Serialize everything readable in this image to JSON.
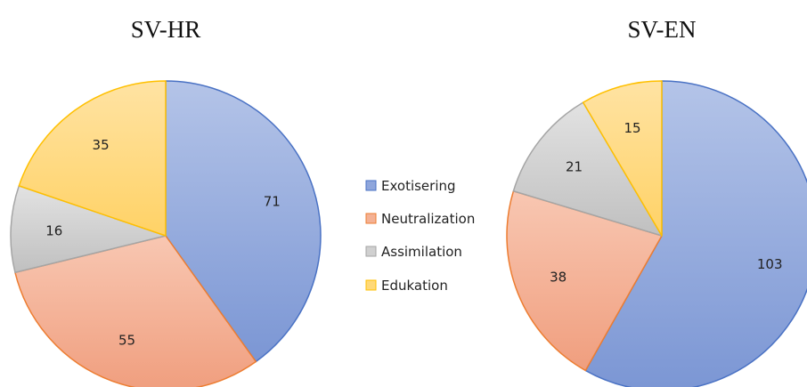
{
  "legend": [
    "Exotisering",
    "Neutralization",
    "Assimilation",
    "Edukation"
  ],
  "colors": {
    "Exotisering": {
      "light": "#b4c4e8",
      "dark": "#7b96d4",
      "stroke": "#4a72c4"
    },
    "Neutralization": {
      "light": "#f8c7b2",
      "dark": "#f09e7e",
      "stroke": "#ed7d31"
    },
    "Assimilation": {
      "light": "#e2e2e2",
      "dark": "#c0c0c0",
      "stroke": "#a5a5a5"
    },
    "Edukation": {
      "light": "#ffe3a3",
      "dark": "#ffd266",
      "stroke": "#ffc000"
    }
  },
  "chart_data": [
    {
      "type": "pie",
      "title": "SV-HR",
      "labels": [
        "Exotisering",
        "Neutralization",
        "Assimilation",
        "Edukation"
      ],
      "values": [
        71,
        55,
        16,
        35
      ],
      "start_angle_deg": 0,
      "direction": "clockwise"
    },
    {
      "type": "pie",
      "title": "SV-EN",
      "labels": [
        "Exotisering",
        "Neutralization",
        "Assimilation",
        "Edukation"
      ],
      "values": [
        103,
        38,
        21,
        15
      ],
      "start_angle_deg": 0,
      "direction": "clockwise"
    }
  ]
}
